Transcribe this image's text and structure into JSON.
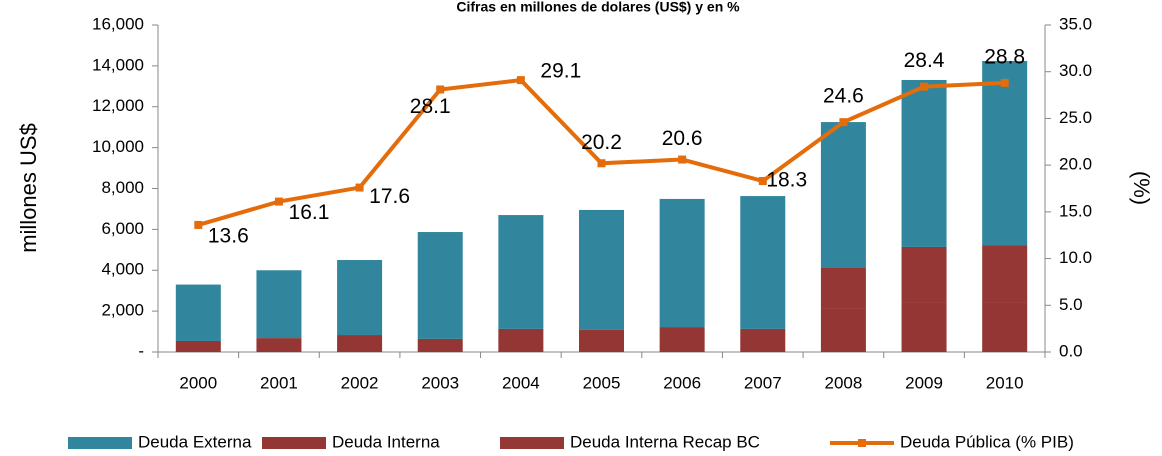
{
  "chart_data": {
    "type": "bar",
    "stacked": true,
    "title": "Cifras en millones de dolares (US$) y en %",
    "y_label": "millones US$",
    "y2_label": "(%)",
    "categories": [
      "2000",
      "2001",
      "2002",
      "2003",
      "2004",
      "2005",
      "2006",
      "2007",
      "2008",
      "2009",
      "2010"
    ],
    "series": [
      {
        "name": "Deuda Interna",
        "color": "#943634",
        "values": [
          540,
          680,
          830,
          640,
          1130,
          1080,
          1220,
          1130,
          2150,
          2400,
          2400
        ]
      },
      {
        "name": "Deuda Interna  Recap  BC",
        "color": "#953735",
        "values": [
          0,
          0,
          0,
          0,
          0,
          0,
          0,
          0,
          1960,
          2740,
          2830
        ]
      },
      {
        "name": "Deuda Externa",
        "color": "#31859c",
        "values": [
          2760,
          3320,
          3670,
          5230,
          5570,
          5870,
          6270,
          6500,
          7140,
          8170,
          9010
        ]
      },
      {
        "name": "Deuda Pública (% PIB)",
        "type": "line",
        "axis": "y2",
        "color": "#e46c0a",
        "values": [
          13.6,
          16.1,
          17.6,
          28.1,
          29.1,
          20.2,
          20.6,
          18.3,
          24.6,
          28.4,
          28.8
        ]
      }
    ],
    "legend_order": [
      2,
      0,
      1,
      3
    ],
    "ylim": [
      0,
      16000
    ],
    "yticks": [
      {
        "value": 0,
        "label": "-"
      },
      {
        "value": 2000,
        "label": "2,000"
      },
      {
        "value": 4000,
        "label": "4,000"
      },
      {
        "value": 6000,
        "label": "6,000"
      },
      {
        "value": 8000,
        "label": "8,000"
      },
      {
        "value": 10000,
        "label": "10,000"
      },
      {
        "value": 12000,
        "label": "12,000"
      },
      {
        "value": 14000,
        "label": "14,000"
      },
      {
        "value": 16000,
        "label": "16,000"
      }
    ],
    "y2lim": [
      0,
      35
    ],
    "y2ticks": [
      {
        "value": 0,
        "label": "0.0"
      },
      {
        "value": 5,
        "label": "5.0"
      },
      {
        "value": 10,
        "label": "10.0"
      },
      {
        "value": 15,
        "label": "15.0"
      },
      {
        "value": 20,
        "label": "20.0"
      },
      {
        "value": 25,
        "label": "25.0"
      },
      {
        "value": 30,
        "label": "30.0"
      },
      {
        "value": 35,
        "label": "35.0"
      }
    ],
    "grid": false,
    "legend": "bottom"
  }
}
